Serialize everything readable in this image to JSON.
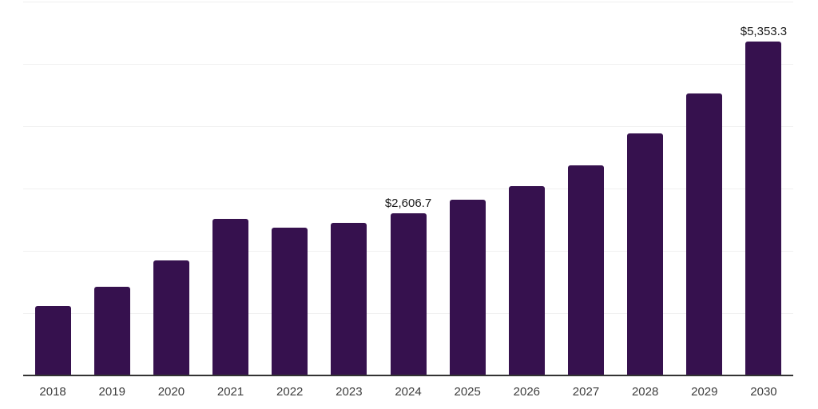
{
  "chart_data": {
    "type": "bar",
    "title": "",
    "xlabel": "",
    "ylabel": "",
    "categories": [
      "2018",
      "2019",
      "2020",
      "2021",
      "2022",
      "2023",
      "2024",
      "2025",
      "2026",
      "2027",
      "2028",
      "2029",
      "2030"
    ],
    "values": [
      1110,
      1420,
      1840,
      2510,
      2370,
      2450,
      2606.7,
      2815,
      3035,
      3375,
      3890,
      4525,
      5353.3
    ],
    "data_labels": [
      "",
      "",
      "",
      "",
      "",
      "",
      "$2,606.7",
      "",
      "",
      "",
      "",
      "",
      "$5,353.3"
    ],
    "ylim": [
      0,
      6000
    ],
    "gridline_interval": 1000,
    "grid": true,
    "legend_position": "none"
  },
  "colors": {
    "bar": "#36114e",
    "gridline": "#f0f0f0",
    "axis_line": "#333333",
    "data_label": "#1a1a1a",
    "tick_label": "#3d3d3d",
    "background": "#ffffff"
  }
}
